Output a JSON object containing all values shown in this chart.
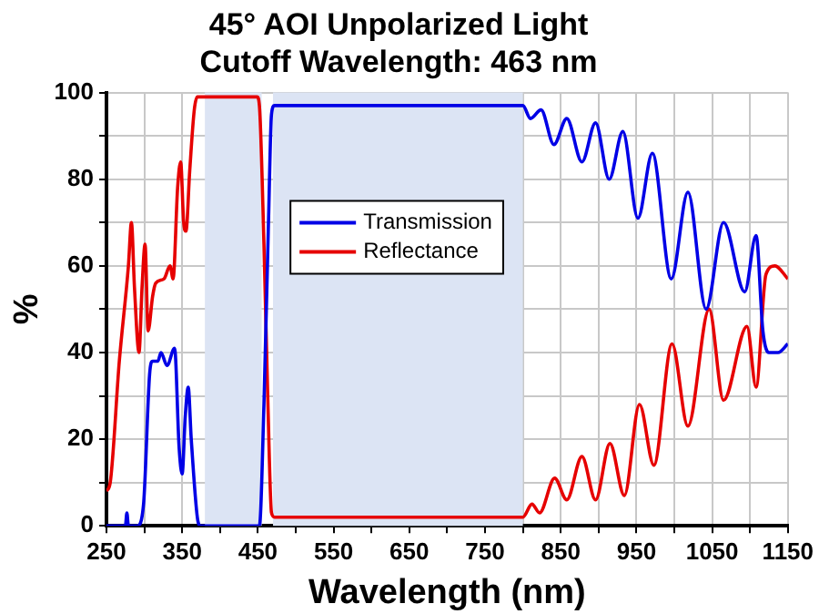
{
  "chart_data": {
    "type": "line",
    "title": "45° AOI Unpolarized Light",
    "subtitle": "Cutoff Wavelength: 463 nm",
    "xlabel": "Wavelength (nm)",
    "ylabel": "%",
    "xlim": [
      250,
      1150
    ],
    "xticks": [
      250,
      {
        "value": 300,
        "label": null
      },
      350,
      {
        "value": 400,
        "label": null
      },
      450,
      {
        "value": 500,
        "label": null
      },
      550,
      {
        "value": 600,
        "label": null
      },
      650,
      {
        "value": 700,
        "label": null
      },
      750,
      {
        "value": 800,
        "label": null
      },
      850,
      {
        "value": 900,
        "label": null
      },
      950,
      {
        "value": 1000,
        "label": null
      },
      1050,
      {
        "value": 1100,
        "label": null
      },
      1150
    ],
    "ylim": [
      0,
      100
    ],
    "yticks": [
      0,
      {
        "value": 10,
        "label": null
      },
      20,
      {
        "value": 30,
        "label": null
      },
      40,
      {
        "value": 50,
        "label": null
      },
      60,
      {
        "value": 70,
        "label": null
      },
      80,
      {
        "value": 90,
        "label": null
      },
      100
    ],
    "grid": true,
    "legend": "top left",
    "bands": [
      {
        "axis": "x",
        "from": 380,
        "to": 455,
        "color": "#dce4f4"
      },
      {
        "axis": "x",
        "from": 470,
        "to": 800,
        "color": "#dce4f4"
      }
    ],
    "series": [
      {
        "name": "Transmission",
        "color": "#0000e6",
        "x": [
          250,
          275,
          277,
          279,
          291,
          299,
          307,
          311,
          318,
          322,
          330,
          340,
          346,
          350,
          354,
          358,
          362,
          370,
          374,
          452,
          458,
          464,
          468,
          472,
          550,
          650,
          750,
          800,
          810,
          824,
          841,
          858,
          878,
          896,
          914,
          932,
          952,
          971,
          996,
          1018,
          1042,
          1065,
          1093,
          1108,
          1117,
          1125,
          1137,
          1150
        ],
        "values": [
          0,
          0,
          3,
          0,
          0,
          5,
          35,
          38,
          38,
          40,
          37,
          41,
          18,
          12,
          25,
          32,
          20,
          2,
          0,
          0,
          28,
          70,
          95,
          97,
          97,
          97,
          97,
          97,
          94,
          96,
          88,
          94,
          84,
          93,
          80,
          91,
          71,
          86,
          57,
          77,
          50,
          70,
          54,
          67,
          45,
          40,
          40,
          42
        ]
      },
      {
        "name": "Reflectance",
        "color": "#e60000",
        "x": [
          250,
          255,
          267,
          279,
          283,
          287,
          293,
          297,
          301,
          305,
          311,
          315,
          326,
          334,
          338,
          344,
          348,
          352,
          355,
          360,
          366,
          370,
          449,
          452,
          458,
          463,
          468,
          472,
          550,
          650,
          750,
          800,
          812,
          822,
          842,
          858,
          878,
          896,
          915,
          934,
          954,
          973,
          997,
          1018,
          1046,
          1065,
          1096,
          1108,
          1121,
          1133,
          1150
        ],
        "values": [
          8,
          10,
          38,
          60,
          70,
          55,
          40,
          55,
          65,
          45,
          53,
          56,
          57,
          60,
          57,
          78,
          84,
          70,
          68,
          82,
          96,
          99,
          99,
          97,
          65,
          30,
          3,
          2,
          2,
          2,
          2,
          2,
          5,
          3,
          11,
          6,
          16,
          6,
          19,
          7,
          28,
          14,
          42,
          23,
          50,
          29,
          46,
          32,
          58,
          60,
          57
        ]
      }
    ]
  }
}
